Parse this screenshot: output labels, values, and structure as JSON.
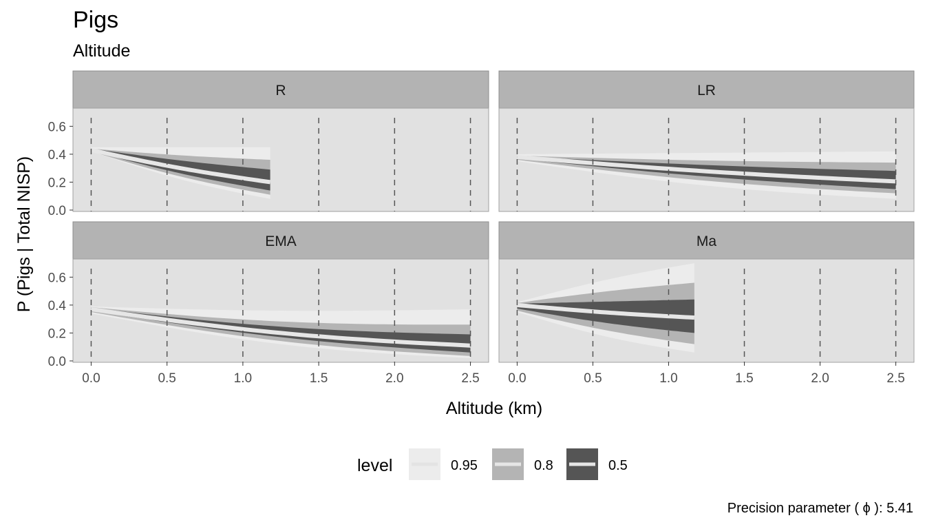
{
  "chart_data": {
    "type": "area",
    "title": "Pigs",
    "subtitle": "Altitude",
    "xlabel": "Altitude (km)",
    "ylabel": "P (Pigs | Total NISP)",
    "xlim": [
      -0.12,
      2.62
    ],
    "ylim": [
      -0.01,
      0.73
    ],
    "x_ticks": [
      "0.0",
      "0.5",
      "1.0",
      "1.5",
      "2.0",
      "2.5"
    ],
    "x_tick_values": [
      0,
      0.5,
      1.0,
      1.5,
      2.0,
      2.5
    ],
    "y_ticks": [
      "0.0",
      "0.2",
      "0.4",
      "0.6"
    ],
    "y_tick_values": [
      0,
      0.2,
      0.4,
      0.6
    ],
    "vertical_dashed_lines": [
      0,
      0.5,
      1.0,
      1.5,
      2.0,
      2.5
    ],
    "legend": {
      "title": "level",
      "placement": "bottom",
      "entries": [
        {
          "label": "0.95",
          "color": "#ececec"
        },
        {
          "label": "0.8",
          "color": "#b4b4b4"
        },
        {
          "label": "0.5",
          "color": "#555555"
        }
      ],
      "center_line_color": "#e6e6e6"
    },
    "caption": "Precision parameter ( ϕ ):  5.41",
    "colors": {
      "panel_bg": "#e1e1e1",
      "strip_bg": "#b3b3b3",
      "level_0.95": "#ececec",
      "level_0.8": "#b4b4b4",
      "level_0.5": "#555555",
      "median": "#e6e6e6",
      "dashed_line": "#555555"
    },
    "panels": [
      {
        "name": "R",
        "x": [
          0,
          1.18
        ],
        "bands": {
          "0.95": {
            "lower": [
              0.42,
              0.08
            ],
            "upper": [
              0.45,
              0.45
            ],
            "curv": [
              0.03,
              0.0
            ]
          },
          "0.8": {
            "lower": [
              0.42,
              0.11
            ],
            "upper": [
              0.44,
              0.36
            ],
            "curv": [
              0.025,
              0.008
            ]
          },
          "0.5": {
            "lower": [
              0.425,
              0.14
            ],
            "upper": [
              0.44,
              0.29
            ],
            "curv": [
              0.02,
              0.01
            ]
          }
        },
        "median": [
          0.43,
          0.2
        ]
      },
      {
        "name": "LR",
        "x": [
          0,
          2.5
        ],
        "bands": {
          "0.95": {
            "lower": [
              0.35,
              0.08
            ],
            "upper": [
              0.4,
              0.42
            ],
            "curv": [
              0.04,
              0.0
            ]
          },
          "0.8": {
            "lower": [
              0.36,
              0.12
            ],
            "upper": [
              0.39,
              0.34
            ],
            "curv": [
              0.03,
              0.01
            ]
          },
          "0.5": {
            "lower": [
              0.37,
              0.15
            ],
            "upper": [
              0.385,
              0.28
            ],
            "curv": [
              0.02,
              0.01
            ]
          }
        },
        "median": [
          0.38,
          0.205
        ]
      },
      {
        "name": "EMA",
        "x": [
          0,
          2.5
        ],
        "bands": {
          "0.95": {
            "lower": [
              0.34,
              0.02
            ],
            "upper": [
              0.39,
              0.37
            ],
            "curv": [
              0.06,
              0.02
            ]
          },
          "0.8": {
            "lower": [
              0.35,
              0.035
            ],
            "upper": [
              0.385,
              0.26
            ],
            "curv": [
              0.05,
              0.04
            ]
          },
          "0.5": {
            "lower": [
              0.36,
              0.06
            ],
            "upper": [
              0.38,
              0.19
            ],
            "curv": [
              0.04,
              0.04
            ]
          }
        },
        "median": [
          0.37,
          0.11
        ]
      },
      {
        "name": "Ma",
        "x": [
          0,
          1.17
        ],
        "bands": {
          "0.95": {
            "lower": [
              0.35,
              0.06
            ],
            "upper": [
              0.42,
              0.7
            ],
            "curv": [
              0.03,
              -0.02
            ]
          },
          "0.8": {
            "lower": [
              0.36,
              0.12
            ],
            "upper": [
              0.415,
              0.56
            ],
            "curv": [
              0.02,
              -0.01
            ]
          },
          "0.5": {
            "lower": [
              0.375,
              0.2
            ],
            "upper": [
              0.41,
              0.44
            ],
            "curv": [
              0.015,
              0.0
            ]
          }
        },
        "median": [
          0.4,
          0.31
        ]
      }
    ]
  }
}
